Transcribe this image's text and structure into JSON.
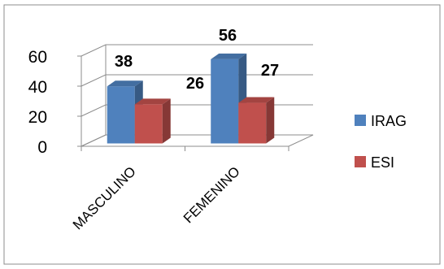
{
  "chart_data": {
    "type": "bar",
    "style": "3d-clustered-column",
    "title": "",
    "xlabel": "",
    "ylabel": "",
    "categories": [
      "MASCULINO",
      "FEMENINO"
    ],
    "series": [
      {
        "name": "IRAG",
        "values": [
          38,
          56
        ],
        "color": "#4F81BD"
      },
      {
        "name": "ESI",
        "values": [
          26,
          27
        ],
        "color": "#C0504D"
      }
    ],
    "y_ticks": [
      "0",
      "20",
      "40",
      "60"
    ],
    "ylim": [
      0,
      60
    ],
    "grid": true,
    "legend_position": "right",
    "data_labels": [
      "38",
      "26",
      "56",
      "27"
    ]
  }
}
